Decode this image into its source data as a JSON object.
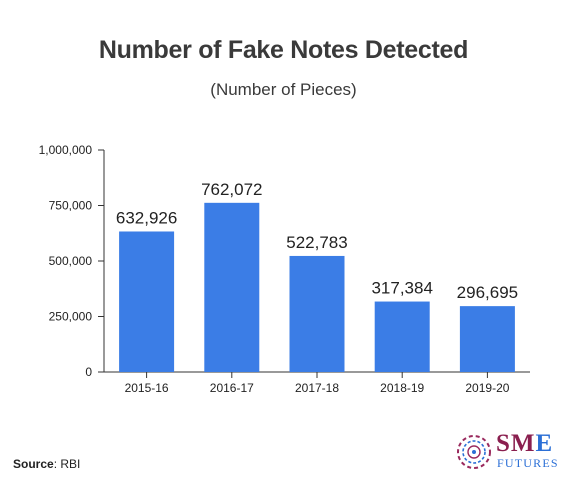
{
  "chart_data": {
    "type": "bar",
    "title": "Number of Fake Notes Detected",
    "subtitle": "(Number of Pieces)",
    "categories": [
      "2015-16",
      "2016-17",
      "2017-18",
      "2018-19",
      "2019-20"
    ],
    "values": [
      632926,
      762072,
      522783,
      317384,
      296695
    ],
    "data_labels": [
      "632,926",
      "762,072",
      "522,783",
      "317,384",
      "296,695"
    ],
    "yticks": [
      "0",
      "250,000",
      "500,000",
      "750,000",
      "1,000,000"
    ],
    "ytick_values": [
      0,
      250000,
      500000,
      750000,
      1000000
    ],
    "ylim": [
      0,
      1000000
    ],
    "xlabel": "",
    "ylabel": "",
    "grid": false,
    "bar_color": "#3b7de6"
  },
  "footer": {
    "source_label": "Source",
    "source_value": ": RBI"
  },
  "logo": {
    "line1": "SME",
    "line2": "FUTURES",
    "colors": {
      "sm": "#8a1f4f",
      "e": "#2b6fd6",
      "ring": "#9a2a5e",
      "futures": "#2b6fd6"
    }
  }
}
